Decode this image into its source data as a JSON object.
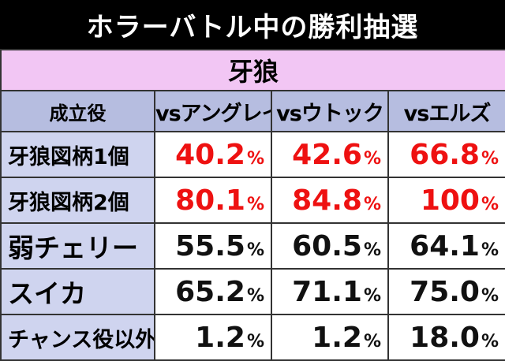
{
  "title": "ホラーバトル中の勝利抽選",
  "section": "牙狼",
  "header": {
    "corner": "成立役",
    "opponents": [
      "vsアングレイ",
      "vsウトック",
      "vsエルズ"
    ]
  },
  "percent_suffix": "%",
  "rows": [
    {
      "label": "牙狼図柄1個",
      "values": [
        "40.2",
        "42.6",
        "66.8"
      ],
      "highlight": true
    },
    {
      "label": "牙狼図柄2個",
      "values": [
        "80.1",
        "84.8",
        "100"
      ],
      "highlight": true
    },
    {
      "label": "弱チェリー",
      "values": [
        "55.5",
        "60.5",
        "64.1"
      ],
      "highlight": false
    },
    {
      "label": "スイカ",
      "values": [
        "65.2",
        "71.1",
        "75.0"
      ],
      "highlight": false
    },
    {
      "label": "チャンス役以外",
      "values": [
        "1.2",
        "1.2",
        "18.0"
      ],
      "highlight": false
    }
  ],
  "colors": {
    "title_bg": "#000000",
    "section_bg": "#f2c6f4",
    "header_bg": "#b6bde0",
    "label_bg": "#cfd4ef",
    "highlight_text": "#ee1111"
  }
}
